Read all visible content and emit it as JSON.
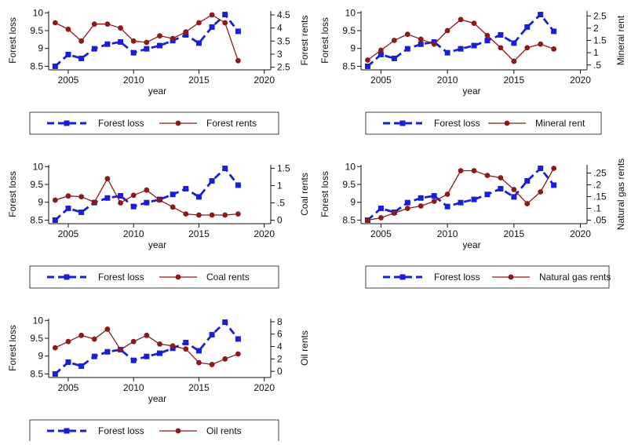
{
  "colors": {
    "forest": "#1a1fd6",
    "rent": "#8b1a1a",
    "axis": "#111111"
  },
  "chart_data": [
    {
      "type": "line",
      "xlabel": "year",
      "ylabel_left": "Forest loss",
      "ylabel_right": "Forest rents",
      "xlim": [
        2003.5,
        2020.5
      ],
      "xticks": [
        "2005",
        "2010",
        "2015",
        "2020"
      ],
      "ylim_left": [
        8.4,
        10.05
      ],
      "yticks_left": [
        "8.5",
        "9",
        "9.5",
        "10"
      ],
      "ylim_right": [
        2.4,
        4.65
      ],
      "yticks_right": [
        "2.5",
        "3",
        "3.5",
        "4",
        "4.5"
      ],
      "x": [
        2004,
        2005,
        2006,
        2007,
        2008,
        2009,
        2010,
        2011,
        2012,
        2013,
        2014,
        2015,
        2016,
        2017,
        2018
      ],
      "series": [
        {
          "name": "Forest loss",
          "axis": "left",
          "values": [
            8.5,
            8.83,
            8.72,
            8.99,
            9.12,
            9.18,
            8.88,
            8.99,
            9.08,
            9.22,
            9.38,
            9.15,
            9.6,
            9.95,
            9.48
          ]
        },
        {
          "name": "Forest rents",
          "axis": "right",
          "values": [
            4.2,
            3.95,
            3.5,
            4.15,
            4.15,
            4.0,
            3.5,
            3.45,
            3.7,
            3.6,
            3.85,
            4.2,
            4.5,
            4.2,
            2.75
          ]
        }
      ]
    },
    {
      "type": "line",
      "xlabel": "year",
      "ylabel_left": "Forest loss",
      "ylabel_right": "Mineral rent",
      "xlim": [
        2003.5,
        2020.5
      ],
      "xticks": [
        "2005",
        "2010",
        "2015",
        "2020"
      ],
      "ylim_left": [
        8.4,
        10.05
      ],
      "yticks_left": [
        "8.5",
        "9",
        "9.5",
        "10"
      ],
      "ylim_right": [
        0.3,
        2.7
      ],
      "yticks_right": [
        ".5",
        "1",
        "1.5",
        "2",
        "2.5"
      ],
      "x": [
        2004,
        2005,
        2006,
        2007,
        2008,
        2009,
        2010,
        2011,
        2012,
        2013,
        2014,
        2015,
        2016,
        2017,
        2018
      ],
      "series": [
        {
          "name": "Forest loss",
          "axis": "left",
          "values": [
            8.5,
            8.83,
            8.72,
            8.99,
            9.12,
            9.18,
            8.88,
            8.99,
            9.08,
            9.22,
            9.38,
            9.15,
            9.6,
            9.95,
            9.48
          ]
        },
        {
          "name": "Mineral rent",
          "axis": "right",
          "values": [
            0.7,
            1.1,
            1.5,
            1.75,
            1.55,
            1.35,
            1.9,
            2.35,
            2.2,
            1.7,
            1.2,
            0.65,
            1.2,
            1.35,
            1.15
          ]
        }
      ]
    },
    {
      "type": "line",
      "xlabel": "year",
      "ylabel_left": "Forest loss",
      "ylabel_right": "Coal rents",
      "xlim": [
        2003.5,
        2020.5
      ],
      "xticks": [
        "2005",
        "2010",
        "2015",
        "2020"
      ],
      "ylim_left": [
        8.4,
        10.05
      ],
      "yticks_left": [
        "8.5",
        "9",
        "9.5",
        "10"
      ],
      "ylim_right": [
        -0.1,
        1.6
      ],
      "yticks_right": [
        "0",
        ".5",
        "1",
        "1.5"
      ],
      "x": [
        2004,
        2005,
        2006,
        2007,
        2008,
        2009,
        2010,
        2011,
        2012,
        2013,
        2014,
        2015,
        2016,
        2017,
        2018
      ],
      "series": [
        {
          "name": "Forest loss",
          "axis": "left",
          "values": [
            8.5,
            8.83,
            8.72,
            8.99,
            9.12,
            9.18,
            8.88,
            8.99,
            9.08,
            9.22,
            9.38,
            9.15,
            9.6,
            9.95,
            9.48
          ]
        },
        {
          "name": "Coal rents",
          "axis": "right",
          "values": [
            0.58,
            0.7,
            0.68,
            0.52,
            1.2,
            0.5,
            0.72,
            0.87,
            0.58,
            0.38,
            0.18,
            0.15,
            0.15,
            0.15,
            0.18
          ]
        }
      ]
    },
    {
      "type": "line",
      "xlabel": "year",
      "ylabel_left": "Forest loss",
      "ylabel_right": "Natural gas rents",
      "xlim": [
        2003.5,
        2020.5
      ],
      "xticks": [
        "2005",
        "2010",
        "2015",
        "2020"
      ],
      "ylim_left": [
        8.4,
        10.05
      ],
      "yticks_left": [
        "8.5",
        "9",
        "9.5",
        "10"
      ],
      "ylim_right": [
        0.035,
        0.285
      ],
      "yticks_right": [
        ".05",
        ".1",
        ".15",
        ".2",
        ".25"
      ],
      "x": [
        2004,
        2005,
        2006,
        2007,
        2008,
        2009,
        2010,
        2011,
        2012,
        2013,
        2014,
        2015,
        2016,
        2017,
        2018
      ],
      "series": [
        {
          "name": "Forest loss",
          "axis": "left",
          "values": [
            8.5,
            8.83,
            8.72,
            8.99,
            9.12,
            9.18,
            8.88,
            8.99,
            9.08,
            9.22,
            9.38,
            9.15,
            9.6,
            9.95,
            9.48
          ]
        },
        {
          "name": "Natural gas rents",
          "axis": "right",
          "values": [
            0.05,
            0.06,
            0.08,
            0.1,
            0.11,
            0.13,
            0.16,
            0.26,
            0.26,
            0.24,
            0.23,
            0.18,
            0.12,
            0.17,
            0.27
          ]
        }
      ]
    },
    {
      "type": "line",
      "xlabel": "year",
      "ylabel_left": "Forest loss",
      "ylabel_right": "Oil rents",
      "xlim": [
        2003.5,
        2020.5
      ],
      "xticks": [
        "2005",
        "2010",
        "2015",
        "2020"
      ],
      "ylim_left": [
        8.4,
        10.05
      ],
      "yticks_left": [
        "8.5",
        "9",
        "9.5",
        "10"
      ],
      "ylim_right": [
        -1,
        8.5
      ],
      "yticks_right": [
        "0",
        "2",
        "4",
        "6",
        "8"
      ],
      "x": [
        2004,
        2005,
        2006,
        2007,
        2008,
        2009,
        2010,
        2011,
        2012,
        2013,
        2014,
        2015,
        2016,
        2017,
        2018
      ],
      "series": [
        {
          "name": "Forest loss",
          "axis": "left",
          "values": [
            8.5,
            8.83,
            8.72,
            8.99,
            9.12,
            9.18,
            8.88,
            8.99,
            9.08,
            9.22,
            9.38,
            9.15,
            9.6,
            9.95,
            9.48
          ]
        },
        {
          "name": "Oil rents",
          "axis": "right",
          "values": [
            3.8,
            4.8,
            5.8,
            5.2,
            6.8,
            3.5,
            4.8,
            5.8,
            4.4,
            4.1,
            3.6,
            1.4,
            1.1,
            2.0,
            2.8
          ]
        }
      ]
    }
  ]
}
